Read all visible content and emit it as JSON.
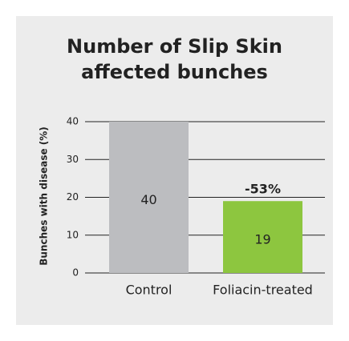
{
  "chart_data": {
    "type": "bar",
    "title": "Number of Slip Skin affected bunches",
    "y_label": "Bunches with disease (%)",
    "categories": [
      "Control",
      "Foliacin-treated"
    ],
    "values": [
      40,
      19
    ],
    "colors": [
      "#bcbdc0",
      "#8dc63f"
    ],
    "annotations": [
      {
        "text": "-53%",
        "category": 1
      }
    ],
    "ylim": [
      0,
      40
    ],
    "yticks": [
      0,
      10,
      20,
      30,
      40
    ],
    "grid": true
  }
}
